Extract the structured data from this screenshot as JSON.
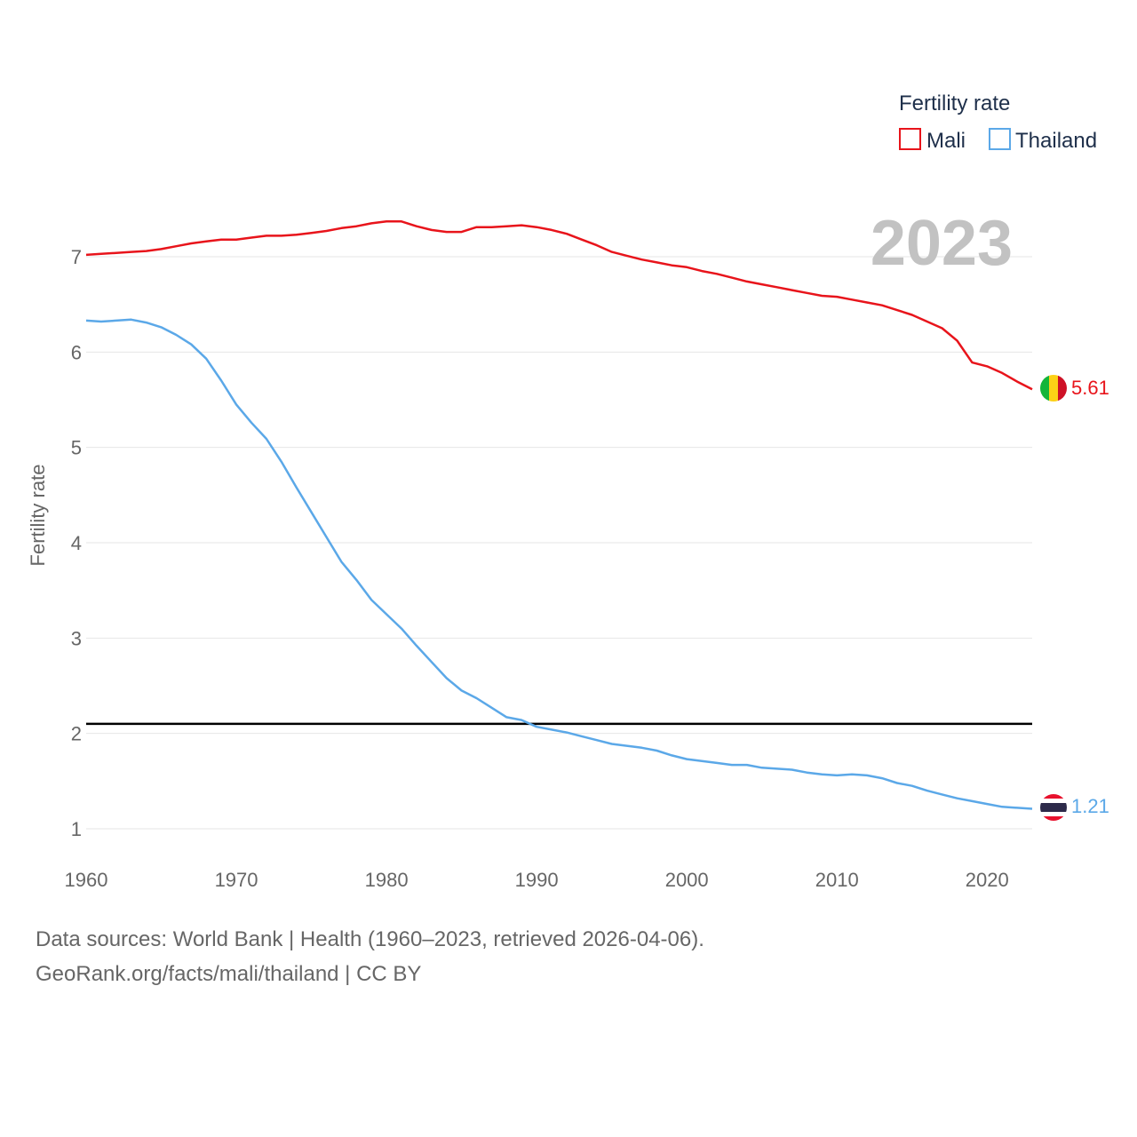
{
  "chart_data": {
    "type": "line",
    "year": "2023",
    "ylabel": "Fertility rate",
    "xlabel": "",
    "legend_title": "Fertility rate",
    "legend_position": "top-right",
    "xlim": [
      1960,
      2023
    ],
    "ylim": [
      1,
      7
    ],
    "x_ticks": [
      1960,
      1970,
      1980,
      1990,
      2000,
      2010,
      2020
    ],
    "y_ticks": [
      1,
      2,
      3,
      4,
      5,
      6,
      7
    ],
    "reference_line": 2.1,
    "x": [
      1960,
      1961,
      1962,
      1963,
      1964,
      1965,
      1966,
      1967,
      1968,
      1969,
      1970,
      1971,
      1972,
      1973,
      1974,
      1975,
      1976,
      1977,
      1978,
      1979,
      1980,
      1981,
      1982,
      1983,
      1984,
      1985,
      1986,
      1987,
      1988,
      1989,
      1990,
      1991,
      1992,
      1993,
      1994,
      1995,
      1996,
      1997,
      1998,
      1999,
      2000,
      2001,
      2002,
      2003,
      2004,
      2005,
      2006,
      2007,
      2008,
      2009,
      2010,
      2011,
      2012,
      2013,
      2014,
      2015,
      2016,
      2017,
      2018,
      2019,
      2020,
      2021,
      2022,
      2023
    ],
    "series": [
      {
        "name": "Mali",
        "color": "#e8141b",
        "end_label": "5.61",
        "values": [
          7.02,
          7.03,
          7.04,
          7.05,
          7.06,
          7.08,
          7.11,
          7.14,
          7.16,
          7.18,
          7.18,
          7.2,
          7.22,
          7.22,
          7.23,
          7.25,
          7.27,
          7.3,
          7.32,
          7.35,
          7.37,
          7.37,
          7.32,
          7.28,
          7.26,
          7.26,
          7.31,
          7.31,
          7.32,
          7.33,
          7.31,
          7.28,
          7.24,
          7.18,
          7.12,
          7.05,
          7.01,
          6.97,
          6.94,
          6.91,
          6.89,
          6.85,
          6.82,
          6.78,
          6.74,
          6.71,
          6.68,
          6.65,
          6.62,
          6.59,
          6.58,
          6.55,
          6.52,
          6.49,
          6.44,
          6.39,
          6.32,
          6.25,
          6.12,
          5.89,
          5.85,
          5.78,
          5.69,
          5.61
        ]
      },
      {
        "name": "Thailand",
        "color": "#5ba8e8",
        "end_label": "1.21",
        "values": [
          6.33,
          6.32,
          6.33,
          6.34,
          6.31,
          6.26,
          6.18,
          6.08,
          5.93,
          5.7,
          5.45,
          5.26,
          5.09,
          4.85,
          4.58,
          4.32,
          4.06,
          3.8,
          3.61,
          3.4,
          3.25,
          3.1,
          2.92,
          2.75,
          2.58,
          2.45,
          2.37,
          2.27,
          2.17,
          2.14,
          2.07,
          2.04,
          2.01,
          1.97,
          1.93,
          1.89,
          1.87,
          1.85,
          1.82,
          1.77,
          1.73,
          1.71,
          1.69,
          1.67,
          1.67,
          1.64,
          1.63,
          1.62,
          1.59,
          1.57,
          1.56,
          1.57,
          1.56,
          1.53,
          1.48,
          1.45,
          1.4,
          1.36,
          1.32,
          1.29,
          1.26,
          1.23,
          1.22,
          1.21
        ]
      }
    ]
  },
  "footer": {
    "line1": "Data sources: World Bank | Health (1960–2023, retrieved 2026-04-06).",
    "line2": "GeoRank.org/facts/mali/thailand | CC BY"
  },
  "colors": {
    "grid": "#e6e6e6",
    "reference": "#000000",
    "mali_flag_green": "#14b53a",
    "mali_flag_yellow": "#fcd116",
    "mali_flag_red": "#ce1126",
    "thai_flag_red": "#e8112d",
    "thai_flag_white": "#ffffff",
    "thai_flag_blue": "#2d2a4a"
  }
}
